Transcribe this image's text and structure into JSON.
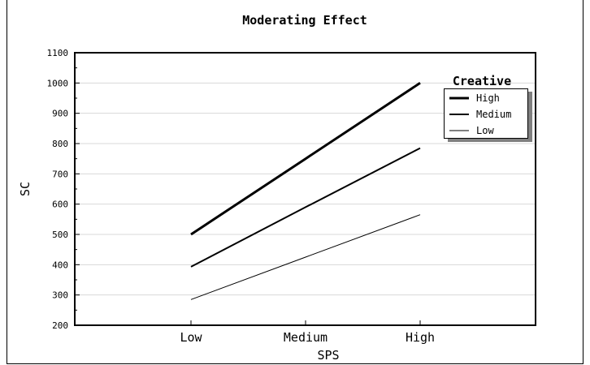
{
  "chart_data": {
    "type": "line",
    "title": "Moderating Effect",
    "xlabel": "SPS",
    "ylabel": "SC",
    "categories": [
      "Low",
      "Medium",
      "High"
    ],
    "ylim": [
      200,
      1100
    ],
    "yticks": [
      200,
      300,
      400,
      500,
      600,
      700,
      800,
      900,
      1000,
      1100
    ],
    "grid": true,
    "legend": {
      "title": "Creative",
      "position": "top-right"
    },
    "series": [
      {
        "name": "High",
        "values": [
          500,
          750,
          1000
        ],
        "width": 3
      },
      {
        "name": "Medium",
        "values": [
          393,
          590,
          785
        ],
        "width": 2
      },
      {
        "name": "Low",
        "values": [
          285,
          425,
          565
        ],
        "width": 1
      }
    ]
  }
}
